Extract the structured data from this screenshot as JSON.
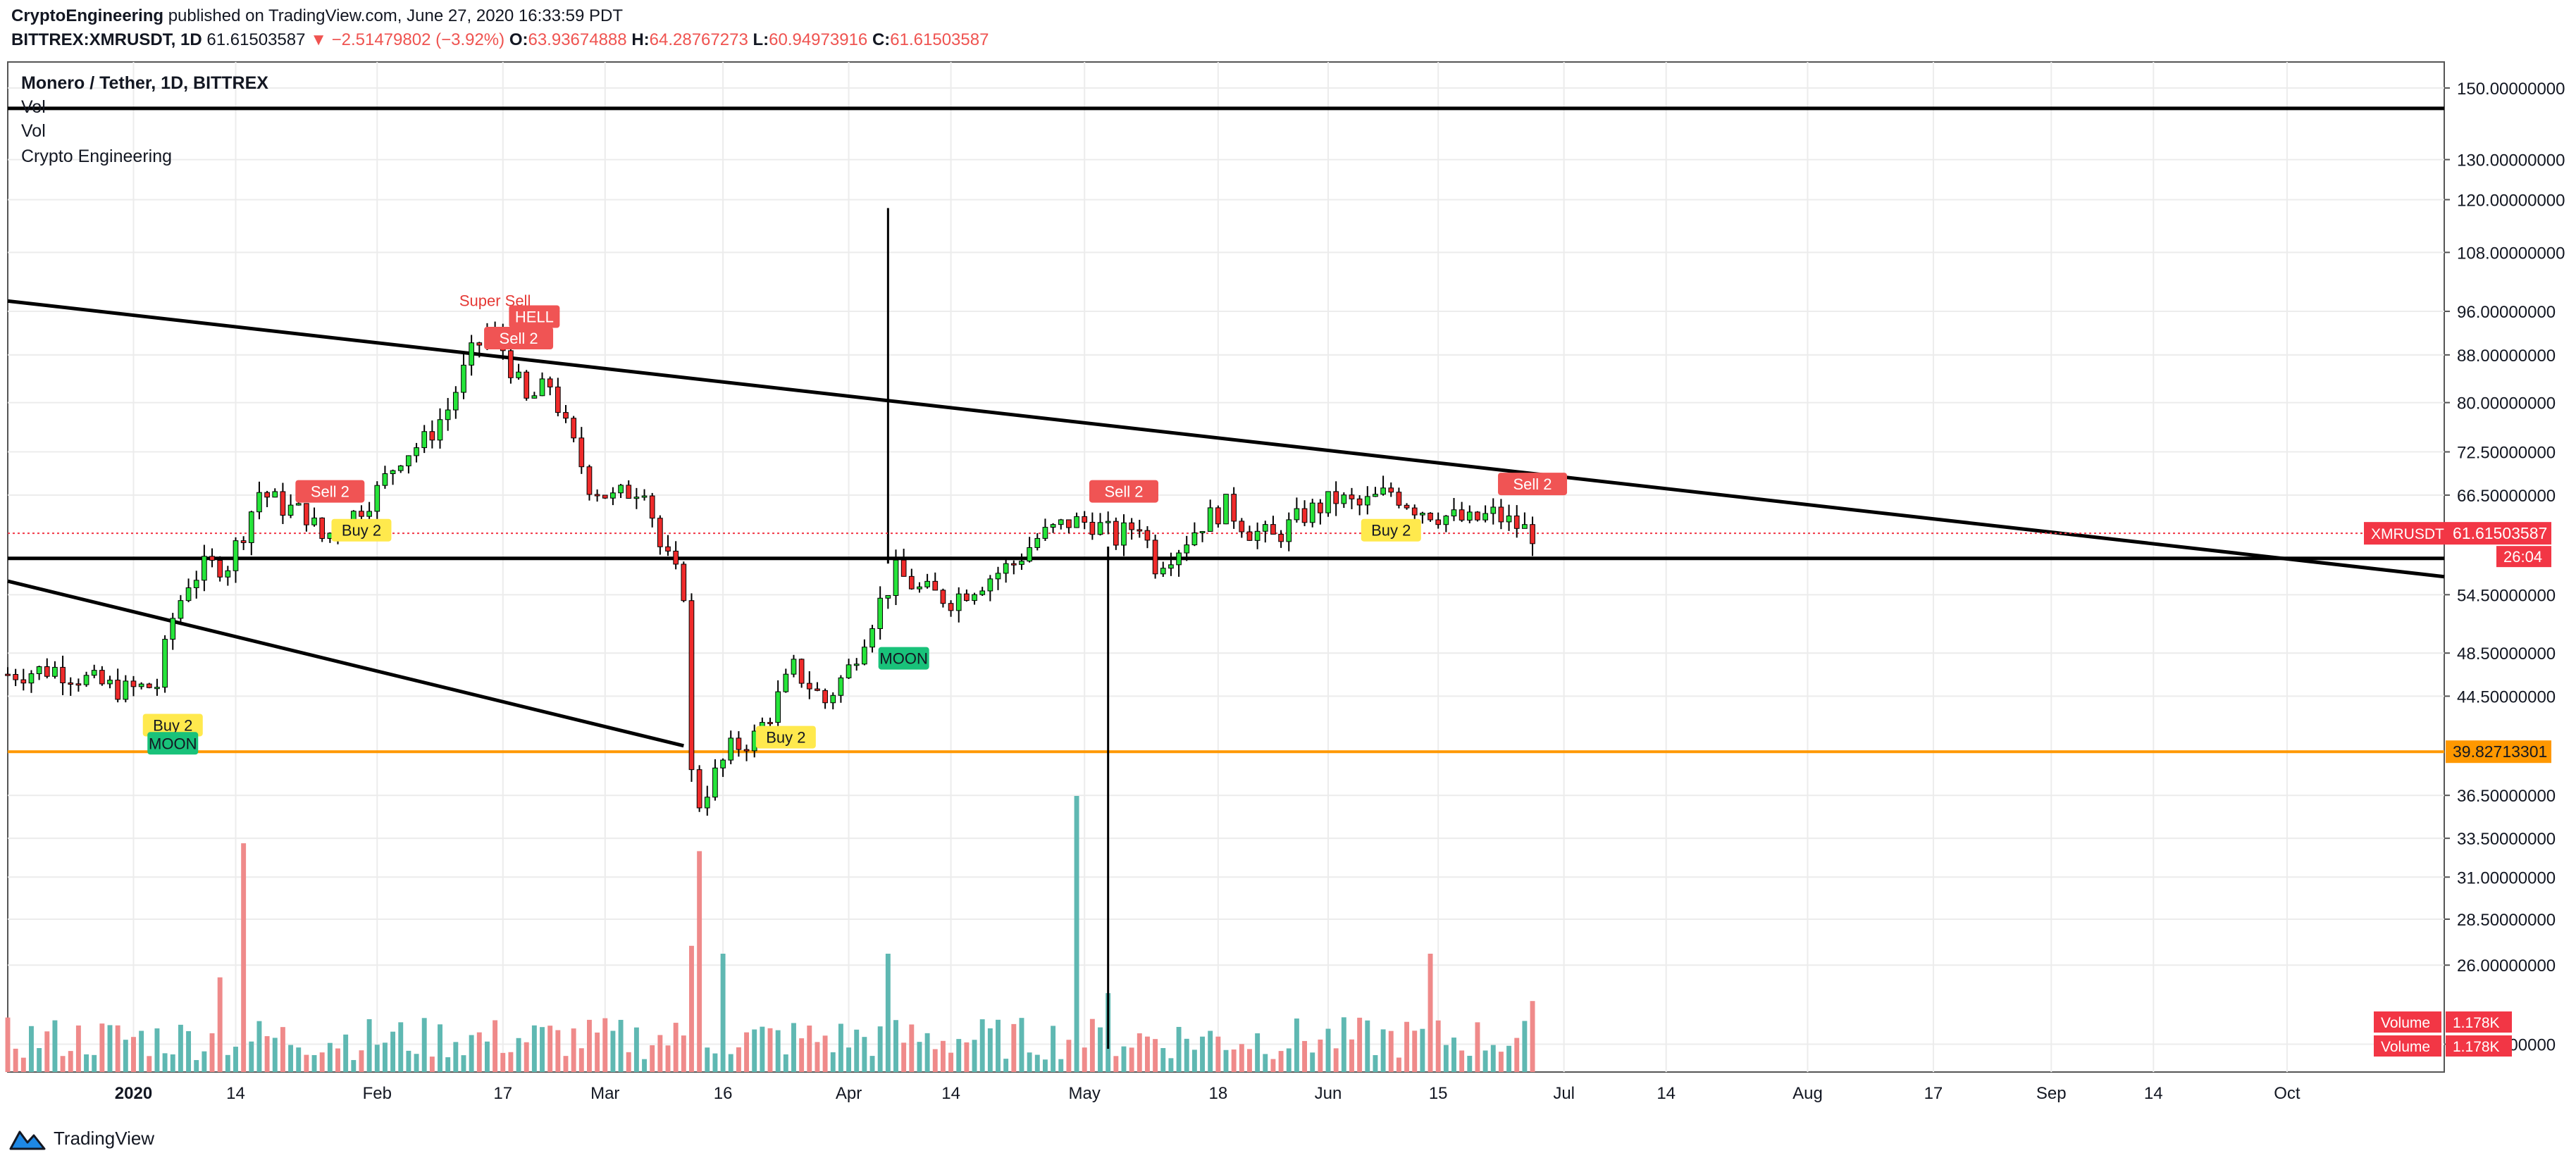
{
  "header": {
    "author": "CryptoEngineering",
    "published": "published on TradingView.com, June 27, 2020 16:33:59 PDT",
    "symbol": "BITTREX:XMRUSDT, 1D",
    "last": "61.61503587",
    "change": "−2.51479802 (−3.92%)",
    "o_label": "O:",
    "o": "63.93674888",
    "h_label": "H:",
    "h": "64.28767273",
    "l_label": "L:",
    "l": "60.94973916",
    "c_label": "C:",
    "c": "61.61503587"
  },
  "legend": {
    "title": "Monero / Tether, 1D, BITTREX",
    "study1": "Vol",
    "study2": "Vol",
    "study3": "Crypto Engineering"
  },
  "footer": {
    "brand": "TradingView"
  },
  "chart_data": {
    "type": "candlestick",
    "price_scale": "log",
    "y_ticks": [
      "150.00000000",
      "130.00000000",
      "120.00000000",
      "108.00000000",
      "96.00000000",
      "88.00000000",
      "80.00000000",
      "72.50000000",
      "66.50000000",
      "54.50000000",
      "48.50000000",
      "44.50000000",
      "36.50000000",
      "33.50000000",
      "31.00000000",
      "28.50000000",
      "26.00000000",
      "22.20000000"
    ],
    "x_ticks": [
      {
        "label": "2020",
        "date": "2020-01-01",
        "bold": true
      },
      {
        "label": "14",
        "date": "2020-01-14"
      },
      {
        "label": "Feb",
        "date": "2020-02-01"
      },
      {
        "label": "17",
        "date": "2020-02-17"
      },
      {
        "label": "Mar",
        "date": "2020-03-01"
      },
      {
        "label": "16",
        "date": "2020-03-16"
      },
      {
        "label": "Apr",
        "date": "2020-04-01"
      },
      {
        "label": "14",
        "date": "2020-04-14"
      },
      {
        "label": "May",
        "date": "2020-05-01"
      },
      {
        "label": "18",
        "date": "2020-05-18"
      },
      {
        "label": "Jun",
        "date": "2020-06-01"
      },
      {
        "label": "15",
        "date": "2020-06-15"
      },
      {
        "label": "Jul",
        "date": "2020-07-01"
      },
      {
        "label": "14",
        "date": "2020-07-14"
      },
      {
        "label": "Aug",
        "date": "2020-08-01"
      },
      {
        "label": "17",
        "date": "2020-08-17"
      },
      {
        "label": "Sep",
        "date": "2020-09-01"
      },
      {
        "label": "14",
        "date": "2020-09-14"
      },
      {
        "label": "Oct",
        "date": "2020-10-01"
      }
    ],
    "price_path": [
      [
        "2019-12-16",
        46.5
      ],
      [
        "2019-12-22",
        47
      ],
      [
        "2019-12-28",
        45.5
      ],
      [
        "2019-12-31",
        45
      ],
      [
        "2020-01-04",
        45.5
      ],
      [
        "2020-01-06",
        52
      ],
      [
        "2020-01-08",
        56
      ],
      [
        "2020-01-10",
        57.5
      ],
      [
        "2020-01-13",
        58
      ],
      [
        "2020-01-15",
        62
      ],
      [
        "2020-01-17",
        67
      ],
      [
        "2020-01-20",
        65
      ],
      [
        "2020-01-23",
        64
      ],
      [
        "2020-01-25",
        61
      ],
      [
        "2020-01-28",
        63
      ],
      [
        "2020-02-01",
        67
      ],
      [
        "2020-02-04",
        72
      ],
      [
        "2020-02-07",
        74
      ],
      [
        "2020-02-10",
        79
      ],
      [
        "2020-02-13",
        88
      ],
      [
        "2020-02-15",
        92
      ],
      [
        "2020-02-17",
        89
      ],
      [
        "2020-02-20",
        80
      ],
      [
        "2020-02-23",
        83
      ],
      [
        "2020-02-25",
        76
      ],
      [
        "2020-02-28",
        68
      ],
      [
        "2020-03-02",
        66
      ],
      [
        "2020-03-06",
        68
      ],
      [
        "2020-03-08",
        60
      ],
      [
        "2020-03-11",
        55
      ],
      [
        "2020-03-12",
        38
      ],
      [
        "2020-03-13",
        36
      ],
      [
        "2020-03-15",
        38
      ],
      [
        "2020-03-17",
        40
      ],
      [
        "2020-03-20",
        41
      ],
      [
        "2020-03-22",
        43
      ],
      [
        "2020-03-25",
        47
      ],
      [
        "2020-03-29",
        44
      ],
      [
        "2020-04-01",
        47
      ],
      [
        "2020-04-04",
        52
      ],
      [
        "2020-04-07",
        57
      ],
      [
        "2020-04-10",
        55
      ],
      [
        "2020-04-14",
        54
      ],
      [
        "2020-04-18",
        56
      ],
      [
        "2020-04-22",
        58
      ],
      [
        "2020-04-25",
        61
      ],
      [
        "2020-04-29",
        63
      ],
      [
        "2020-05-02",
        63
      ],
      [
        "2020-05-05",
        61
      ],
      [
        "2020-05-08",
        63
      ],
      [
        "2020-05-10",
        58
      ],
      [
        "2020-05-13",
        60
      ],
      [
        "2020-05-16",
        63
      ],
      [
        "2020-05-19",
        65
      ],
      [
        "2020-05-22",
        62
      ],
      [
        "2020-05-25",
        61
      ],
      [
        "2020-05-29",
        64
      ],
      [
        "2020-06-02",
        66
      ],
      [
        "2020-06-05",
        65
      ],
      [
        "2020-06-09",
        67
      ],
      [
        "2020-06-12",
        65
      ],
      [
        "2020-06-15",
        64
      ],
      [
        "2020-06-19",
        63
      ],
      [
        "2020-06-22",
        64
      ],
      [
        "2020-06-24",
        63
      ],
      [
        "2020-06-27",
        61.6
      ]
    ],
    "last_date": "2020-06-27",
    "levels": [
      {
        "price": 144,
        "color": "#000000",
        "label": ""
      },
      {
        "price": 58.6,
        "color": "#000000",
        "label": ""
      },
      {
        "price": 39.82713301,
        "color": "#ff9800",
        "label": "39.82713301"
      }
    ],
    "trendlines": [
      {
        "from": [
          "2019-12-16",
          98
        ],
        "to": [
          "2020-10-21",
          56.5
        ]
      },
      {
        "from": [
          "2019-12-16",
          56
        ],
        "to": [
          "2020-03-11",
          40.3
        ]
      }
    ],
    "wicks": [
      {
        "date": "2020-04-06",
        "high": 118,
        "low": 58
      },
      {
        "date": "2020-05-04",
        "high": 60,
        "low": 22
      }
    ],
    "signals": [
      {
        "text": "Sell 2",
        "date": "2020-01-26",
        "price": 67,
        "kind": "sell"
      },
      {
        "text": "Buy 2",
        "date": "2020-01-30",
        "price": 62,
        "kind": "buy"
      },
      {
        "text": "Buy 2",
        "date": "2020-01-06",
        "price": 42,
        "kind": "buy"
      },
      {
        "text": "MOON",
        "date": "2020-01-06",
        "price": 40.5,
        "kind": "moon"
      },
      {
        "text": "Super Sell",
        "date": "2020-02-16",
        "price": 97,
        "kind": "supersell"
      },
      {
        "text": "HELL",
        "date": "2020-02-21",
        "price": 95,
        "kind": "sell"
      },
      {
        "text": "Sell 2",
        "date": "2020-02-19",
        "price": 91,
        "kind": "sell"
      },
      {
        "text": "Buy 2",
        "date": "2020-03-24",
        "price": 41,
        "kind": "buy"
      },
      {
        "text": "MOON",
        "date": "2020-04-08",
        "price": 48,
        "kind": "moon"
      },
      {
        "text": "Sell 2",
        "date": "2020-05-06",
        "price": 67,
        "kind": "sell"
      },
      {
        "text": "Buy 2",
        "date": "2020-06-09",
        "price": 62,
        "kind": "buy"
      },
      {
        "text": "Sell 2",
        "date": "2020-06-27",
        "price": 68,
        "kind": "sell"
      }
    ],
    "volume_bar_count": 196,
    "volume_scale_max": 35,
    "volume_spikes": [
      {
        "date": "2020-01-12",
        "volume": 12
      },
      {
        "date": "2020-01-15",
        "volume": 29
      },
      {
        "date": "2020-03-12",
        "volume": 16
      },
      {
        "date": "2020-03-13",
        "volume": 28
      },
      {
        "date": "2020-03-16",
        "volume": 15
      },
      {
        "date": "2020-04-06",
        "volume": 15
      },
      {
        "date": "2020-04-30",
        "volume": 35
      },
      {
        "date": "2020-05-04",
        "volume": 10
      },
      {
        "date": "2020-06-14",
        "volume": 15
      },
      {
        "date": "2020-06-27",
        "volume": 9
      }
    ],
    "price_badge": {
      "symbol": "XMRUSDT",
      "price": "61.61503587",
      "countdown": "26:04"
    },
    "volume_badges": [
      {
        "label": "Volume",
        "value": "1.178K"
      },
      {
        "label": "Volume",
        "value": "1.178K"
      }
    ],
    "colors": {
      "up": "#26e43a",
      "down": "#ef2b2b",
      "volume_up": "#5fb8b2",
      "volume_down": "#ef8a8a",
      "sell": "#f05454",
      "buy": "#ffe94d",
      "moon": "#19c27a",
      "grid": "#ececec",
      "badge": "#f23645"
    }
  }
}
